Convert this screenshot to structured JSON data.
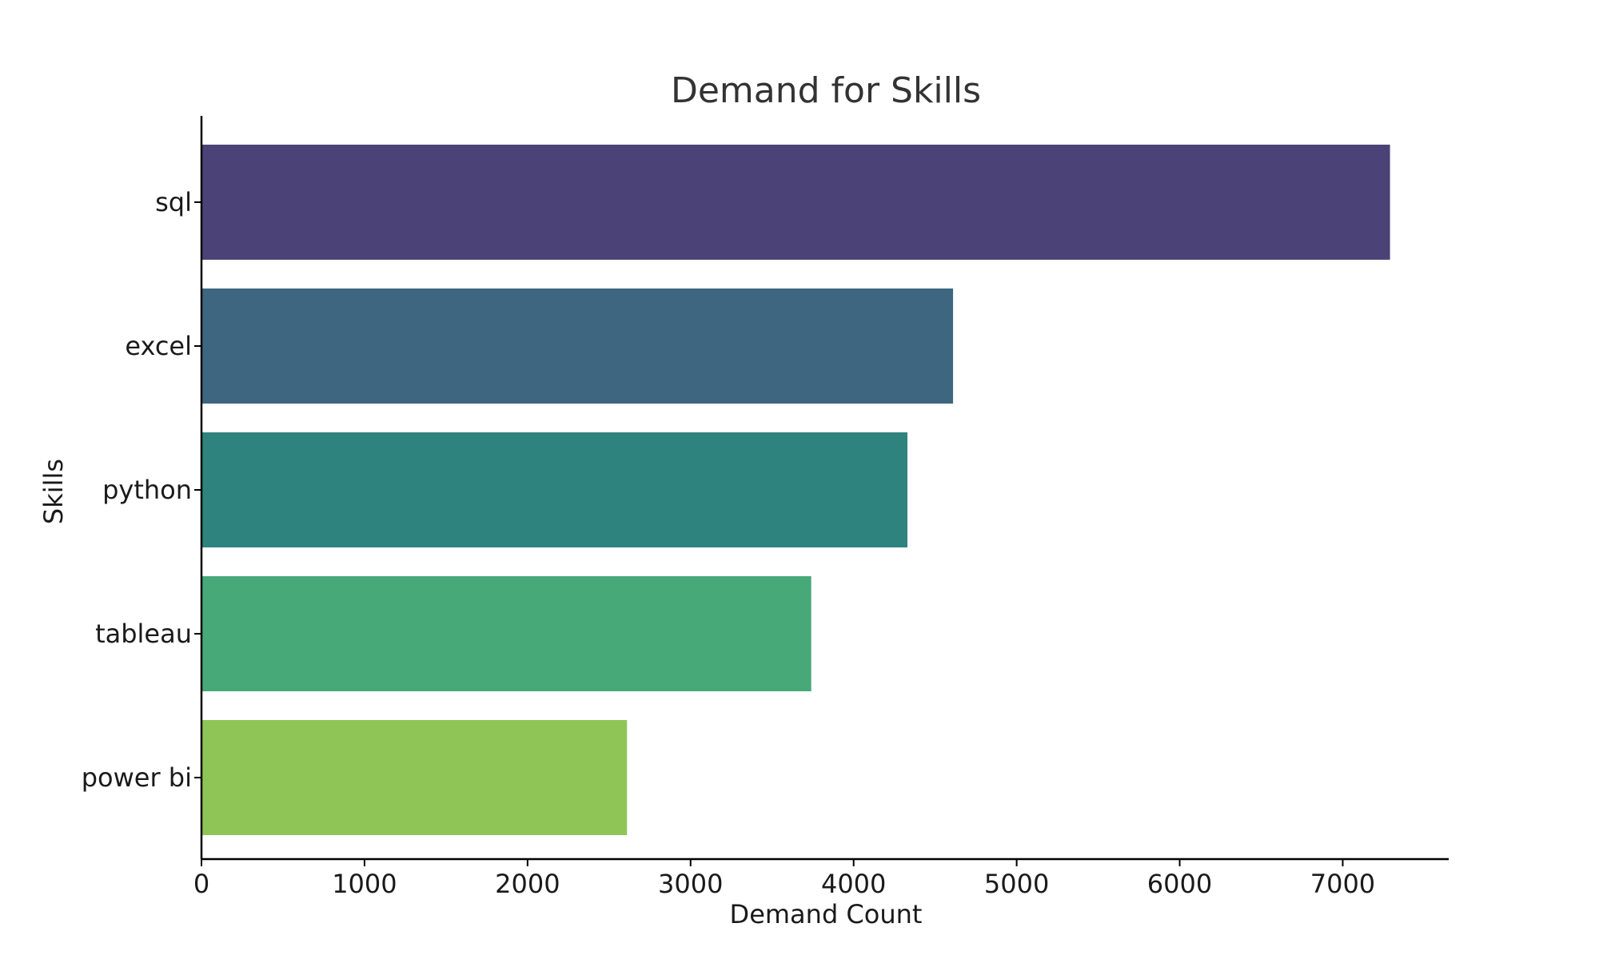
{
  "chart_data": {
    "type": "bar",
    "orientation": "horizontal",
    "title": "Demand for Skills",
    "xlabel": "Demand Count",
    "ylabel": "Skills",
    "categories": [
      "sql",
      "excel",
      "python",
      "tableau",
      "power bi"
    ],
    "values": [
      7290,
      4610,
      4330,
      3740,
      2610
    ],
    "colors": [
      "#4b4377",
      "#3f6680",
      "#2e837e",
      "#47a878",
      "#8fc557"
    ],
    "xlim": [
      0,
      7650
    ],
    "xticks": [
      0,
      1000,
      2000,
      3000,
      4000,
      5000,
      6000,
      7000
    ],
    "grid": false,
    "legend": "none"
  }
}
